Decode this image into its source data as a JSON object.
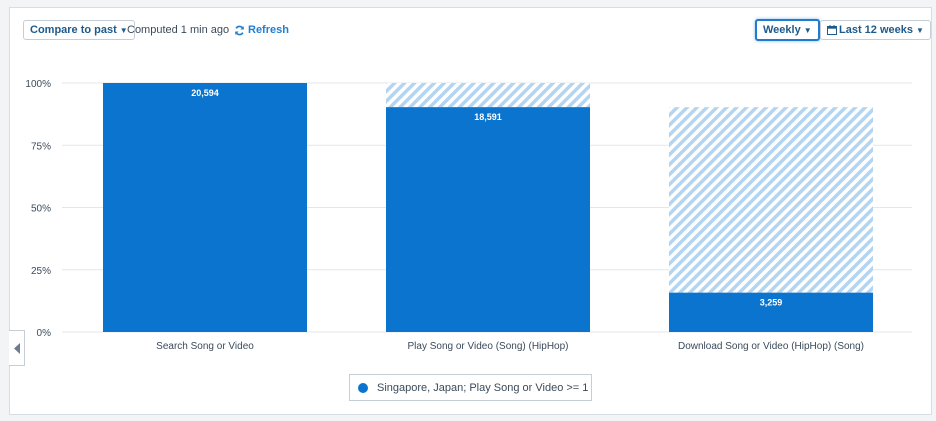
{
  "toolbar": {
    "compare_label": "Compare to past",
    "computed_text": "Computed 1 min ago",
    "refresh_label": "Refresh",
    "interval_label": "Weekly",
    "range_label": "Last 12 weeks"
  },
  "colors": {
    "bar": "#0a74cf",
    "hatch_a": "#b4d5f1",
    "hatch_b": "#ffffff",
    "grid": "#e3e7eb",
    "axis_text": "#3b4a5a"
  },
  "chart_data": {
    "type": "bar",
    "stacked_dropoff": true,
    "categories": [
      "Search Song or Video",
      "Play Song or Video (Song) (HipHop)",
      "Download Song or Video (HipHop) (Song)"
    ],
    "series": [
      {
        "name": "Singapore, Japan; Play Song or Video >= 1",
        "values_pct": [
          100,
          90.3,
          15.8
        ],
        "dropoff_reference_pct": [
          100,
          100,
          90.3
        ],
        "counts": [
          "20,594",
          "18,591",
          "3,259"
        ]
      }
    ],
    "y_ticks": [
      "0%",
      "25%",
      "50%",
      "75%",
      "100%"
    ],
    "ylim": [
      0,
      100
    ],
    "grid": true,
    "legend": "bottom-center"
  }
}
